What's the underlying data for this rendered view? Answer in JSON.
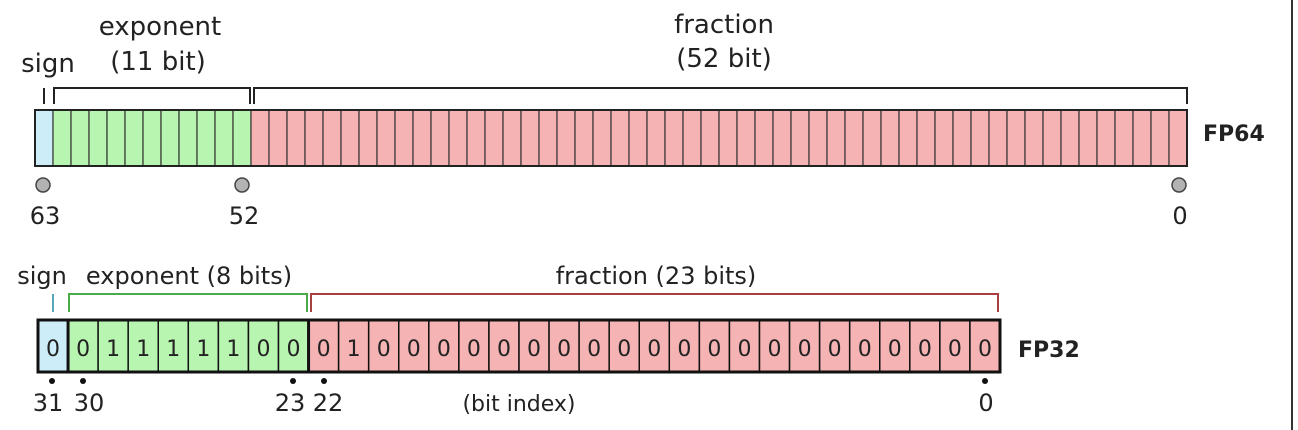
{
  "fp64": {
    "name": "FP64",
    "sign_label": "sign",
    "exponent_label": "exponent",
    "exponent_bits_label": "(11 bit)",
    "fraction_label": "fraction",
    "fraction_bits_label": "(52 bit)",
    "sign_bits": 1,
    "exponent_bits": 11,
    "fraction_bits": 52,
    "index_labels": [
      "63",
      "52",
      "0"
    ]
  },
  "fp32": {
    "name": "FP32",
    "sign_label": "sign",
    "exponent_label": "exponent (8 bits)",
    "fraction_label": "fraction (23 bits)",
    "bit_values": [
      "0",
      "0",
      "1",
      "1",
      "1",
      "1",
      "1",
      "0",
      "0",
      "0",
      "1",
      "0",
      "0",
      "0",
      "0",
      "0",
      "0",
      "0",
      "0",
      "0",
      "0",
      "0",
      "0",
      "0",
      "0",
      "0",
      "0",
      "0",
      "0",
      "0",
      "0",
      "0"
    ],
    "index_labels": [
      "31",
      "30",
      "23",
      "22",
      "0"
    ],
    "bit_index_caption": "(bit index)"
  },
  "colors": {
    "sign": "#cdeef8",
    "exponent": "#b8f5b0",
    "fraction": "#f6b3b3",
    "sign_bracket": "#5aa6b8",
    "exponent_bracket": "#4caa48",
    "fraction_bracket": "#a84040"
  }
}
